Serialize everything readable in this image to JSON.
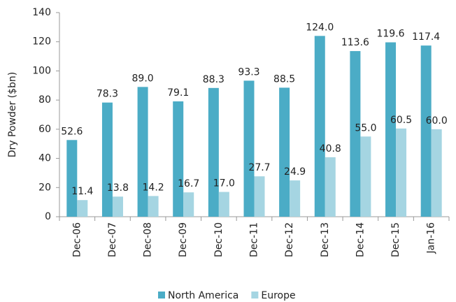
{
  "chart_data": {
    "type": "bar",
    "y_label": "Dry Powder ($bn)",
    "categories": [
      "Dec-06",
      "Dec-07",
      "Dec-08",
      "Dec-09",
      "Dec-10",
      "Dec-11",
      "Dec-12",
      "Dec-13",
      "Dec-14",
      "Dec-15",
      "Jan-16"
    ],
    "series": [
      {
        "name": "North America",
        "color": "#4bacc6",
        "values": [
          52.6,
          78.3,
          89.0,
          79.1,
          88.3,
          93.3,
          88.5,
          124.0,
          113.6,
          119.6,
          117.4
        ],
        "value_labels": [
          "52.6",
          "78.3",
          "89.0",
          "79.1",
          "88.3",
          "93.3",
          "88.5",
          "124.0",
          "113.6",
          "119.6",
          "117.4"
        ]
      },
      {
        "name": "Europe",
        "color": "#a5d5e2",
        "values": [
          11.4,
          13.8,
          14.2,
          16.7,
          17.0,
          27.7,
          24.9,
          40.8,
          55.0,
          60.5,
          60.0
        ],
        "value_labels": [
          "11.4",
          "13.8",
          "14.2",
          "16.7",
          "17.0",
          "27.7",
          "24.9",
          "40.8",
          "55.0",
          "60.5",
          "60.0"
        ]
      }
    ],
    "ylim": [
      0,
      140
    ],
    "yticks": [
      0,
      20,
      40,
      60,
      80,
      100,
      120,
      140
    ],
    "legend": "bottom"
  }
}
